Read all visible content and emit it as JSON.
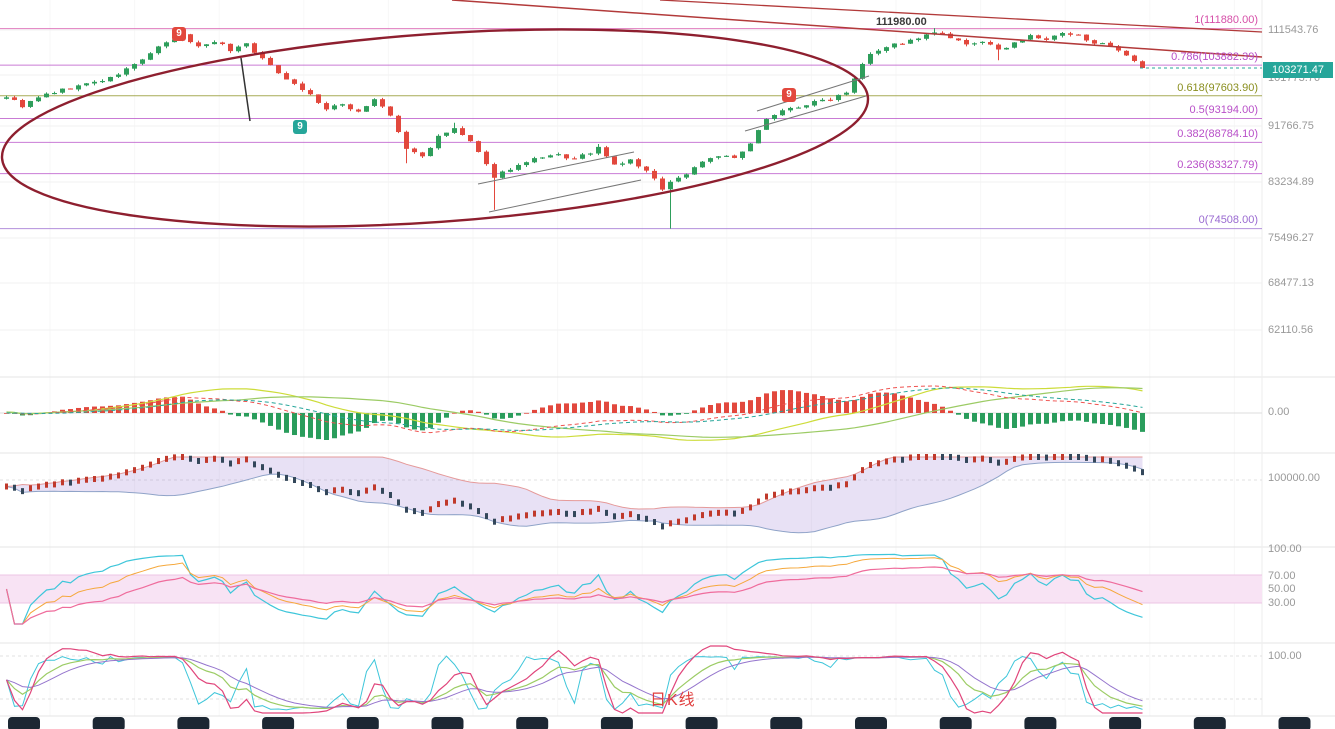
{
  "app": {
    "timeframe_label": "日K线"
  },
  "colors": {
    "candle_up": "#2e9e5b",
    "candle_down": "#e2483d",
    "macd_positive": "#e2483d",
    "macd_negative": "#2a9d5c",
    "current_price_bg": "#26a69a",
    "annotation_ellipse": "#8e1f2f",
    "trend_line": "#b23a3a",
    "axis_text": "#999999",
    "kline_label": "#e03e3e",
    "bottom_bar": "#1c2733"
  },
  "price_axis": {
    "labels": [
      "111543.76",
      "101773.76",
      "91766.75",
      "83234.89",
      "75496.27",
      "68477.13",
      "62110.56"
    ],
    "current_price": "103271.47"
  },
  "fib": {
    "levels": [
      {
        "label": "1(111880.00)",
        "price": 111880.0,
        "color": "#d64fa8"
      },
      {
        "label": "0.786(103882.39)",
        "price": 103882.39,
        "color": "#b84fc8"
      },
      {
        "label": "0.618(97603.90)",
        "price": 97603.9,
        "color": "#8a8f1f"
      },
      {
        "label": "0.5(93194.00)",
        "price": 93194.0,
        "color": "#b84fc8"
      },
      {
        "label": "0.382(88784.10)",
        "price": 88784.1,
        "color": "#b84fc8"
      },
      {
        "label": "0.236(83327.79)",
        "price": 83327.79,
        "color": "#b84fc8"
      },
      {
        "label": "0(74508.00)",
        "price": 74508.0,
        "color": "#9a6ad1"
      }
    ]
  },
  "annotations": {
    "peak_price_label": "111980.00",
    "badges": [
      {
        "label": "9",
        "color": "#e2483d"
      },
      {
        "label": "9",
        "color": "#26a69a"
      },
      {
        "label": "9",
        "color": "#e2483d"
      }
    ]
  },
  "panels": {
    "macd_axis": "0.00",
    "band_axis": "100000.00",
    "rsi_axis": [
      "100.00",
      "70.00",
      "50.00",
      "30.00"
    ],
    "osc_axis": "100.00"
  },
  "chart_data": {
    "type": "candlestick",
    "last_price": 103271.47,
    "peak_price": 111980.0,
    "visible_price_ticks": [
      111543.76,
      101773.76,
      91766.75,
      83234.89,
      75496.27,
      68477.13,
      62110.56
    ],
    "fib_retracement": {
      "0": 74508.0,
      "0.236": 83327.79,
      "0.382": 88784.1,
      "0.5": 93194.0,
      "0.618": 97603.9,
      "0.786": 103882.39,
      "1": 111880.0
    },
    "candle_count": 143,
    "close_waypoints": [
      [
        0,
        97500
      ],
      [
        2,
        95600
      ],
      [
        5,
        97900
      ],
      [
        9,
        99600
      ],
      [
        13,
        101100
      ],
      [
        16,
        104000
      ],
      [
        19,
        107600
      ],
      [
        22,
        110400
      ],
      [
        24,
        107800
      ],
      [
        26,
        109200
      ],
      [
        28,
        107100
      ],
      [
        30,
        108600
      ],
      [
        32,
        105100
      ],
      [
        34,
        102400
      ],
      [
        36,
        100000
      ],
      [
        38,
        97800
      ],
      [
        40,
        94900
      ],
      [
        42,
        95900
      ],
      [
        44,
        94500
      ],
      [
        46,
        96900
      ],
      [
        48,
        93700
      ],
      [
        50,
        87600
      ],
      [
        52,
        86300
      ],
      [
        54,
        89700
      ],
      [
        56,
        91300
      ],
      [
        58,
        88900
      ],
      [
        60,
        84700
      ],
      [
        61,
        82900
      ],
      [
        63,
        84200
      ],
      [
        66,
        85700
      ],
      [
        69,
        86500
      ],
      [
        71,
        85700
      ],
      [
        74,
        87700
      ],
      [
        76,
        84700
      ],
      [
        78,
        85600
      ],
      [
        80,
        83700
      ],
      [
        82,
        80900
      ],
      [
        83,
        81900
      ],
      [
        85,
        83300
      ],
      [
        87,
        85500
      ],
      [
        89,
        86500
      ],
      [
        91,
        85900
      ],
      [
        93,
        88300
      ],
      [
        95,
        93400
      ],
      [
        97,
        94700
      ],
      [
        99,
        95500
      ],
      [
        101,
        96300
      ],
      [
        103,
        97100
      ],
      [
        105,
        98500
      ],
      [
        106,
        101300
      ],
      [
        107,
        104400
      ],
      [
        108,
        106500
      ],
      [
        110,
        107900
      ],
      [
        112,
        108700
      ],
      [
        114,
        109500
      ],
      [
        116,
        111100
      ],
      [
        118,
        109700
      ],
      [
        120,
        108100
      ],
      [
        122,
        109100
      ],
      [
        124,
        106900
      ],
      [
        126,
        108900
      ],
      [
        128,
        110100
      ],
      [
        130,
        109400
      ],
      [
        132,
        110700
      ],
      [
        134,
        110200
      ],
      [
        136,
        108900
      ],
      [
        138,
        107700
      ],
      [
        140,
        105700
      ],
      [
        142,
        103271.47
      ]
    ],
    "wick_highs": {
      "22": 111500,
      "56": 92400,
      "74": 88500,
      "116": 111980
    },
    "wick_lows": {
      "50": 85100,
      "61": 77400,
      "83": 74508,
      "124": 104900
    },
    "indicator_panels": [
      {
        "name": "MACD",
        "zero_label": "0.00"
      },
      {
        "name": "price-band",
        "level_label": "100000.00"
      },
      {
        "name": "RSI",
        "levels": [
          100,
          70,
          50,
          30
        ]
      },
      {
        "name": "KDJ",
        "level_label": "100.00"
      }
    ]
  }
}
